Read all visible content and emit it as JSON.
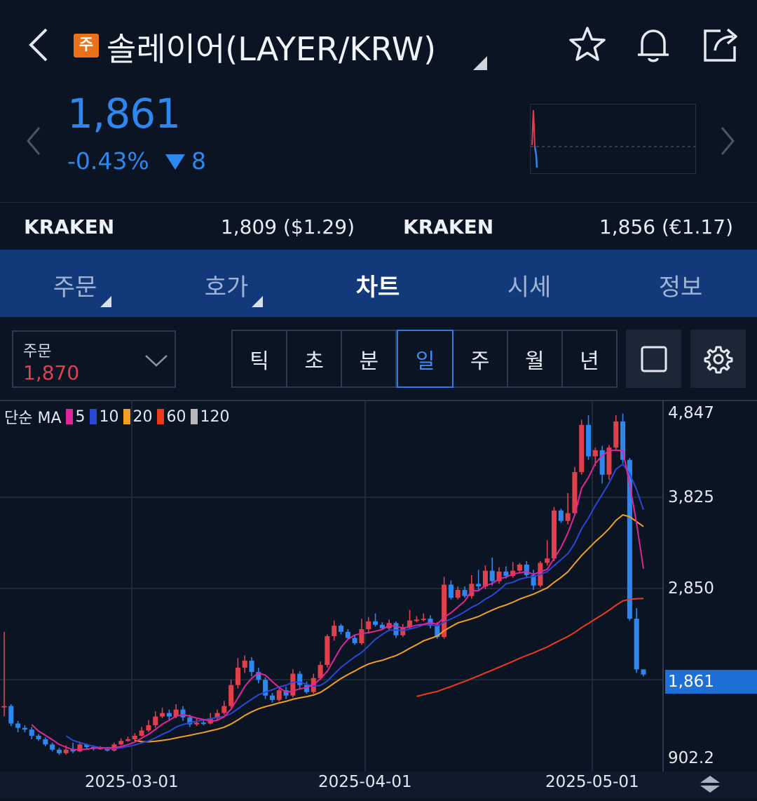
{
  "header": {
    "badge": "주",
    "title": "솔레이어(LAYER/KRW)"
  },
  "ticker": {
    "price": "1,861",
    "change_pct": "-0.43%",
    "change_abs": "8"
  },
  "exchanges": [
    {
      "name": "KRAKEN",
      "value": "1,809 ($1.29)"
    },
    {
      "name": "KRAKEN",
      "value": "1,856 (€1.17)"
    }
  ],
  "tabs": [
    {
      "label": "주문"
    },
    {
      "label": "호가"
    },
    {
      "label": "차트"
    },
    {
      "label": "시세"
    },
    {
      "label": "정보"
    }
  ],
  "order": {
    "label": "주문",
    "value": "1,870"
  },
  "periods": [
    "틱",
    "초",
    "분",
    "일",
    "주",
    "월",
    "년"
  ],
  "legend": {
    "prefix": "단순 MA",
    "items": [
      {
        "label": "5",
        "color": "#e0249a"
      },
      {
        "label": "10",
        "color": "#2b47d6"
      },
      {
        "label": "20",
        "color": "#f0a020"
      },
      {
        "label": "60",
        "color": "#ee3a1c"
      },
      {
        "label": "120",
        "color": "#b8b8b8"
      }
    ]
  },
  "colors": {
    "up": "#e0404a",
    "down": "#2e86ef",
    "accent": "#2e7ae8",
    "tab_bg": "#123a7a"
  },
  "chart_data": {
    "type": "candlestick",
    "y_ticks": [
      "4,847",
      "3,825",
      "2,850",
      "902.2"
    ],
    "last_price_label": "1,861",
    "x_ticks": [
      "2025-03-01",
      "2025-04-01",
      "2025-05-01"
    ],
    "ylim": [
      902.2,
      4847
    ],
    "candles": [
      [
        1500,
        1500,
        2350,
        1380
      ],
      [
        1500,
        1300,
        1520,
        1270
      ],
      [
        1300,
        1250,
        1330,
        1200
      ],
      [
        1250,
        1230,
        1280,
        1200
      ],
      [
        1230,
        1160,
        1260,
        1120
      ],
      [
        1160,
        1120,
        1180,
        1100
      ],
      [
        1120,
        1060,
        1140,
        1040
      ],
      [
        1060,
        1000,
        1080,
        980
      ],
      [
        1000,
        960,
        1020,
        940
      ],
      [
        960,
        1000,
        1050,
        940
      ],
      [
        1000,
        980,
        1080,
        960
      ],
      [
        980,
        1060,
        1080,
        970
      ],
      [
        1060,
        1030,
        1070,
        1010
      ],
      [
        1030,
        1010,
        1050,
        990
      ],
      [
        1010,
        1020,
        1040,
        1000
      ],
      [
        1020,
        990,
        1030,
        980
      ],
      [
        990,
        1060,
        1080,
        980
      ],
      [
        1060,
        1100,
        1130,
        1050
      ],
      [
        1100,
        1120,
        1150,
        1090
      ],
      [
        1120,
        1160,
        1190,
        1100
      ],
      [
        1160,
        1220,
        1260,
        1150
      ],
      [
        1220,
        1280,
        1340,
        1200
      ],
      [
        1280,
        1380,
        1440,
        1250
      ],
      [
        1380,
        1420,
        1480,
        1360
      ],
      [
        1420,
        1380,
        1460,
        1340
      ],
      [
        1380,
        1460,
        1520,
        1360
      ],
      [
        1460,
        1370,
        1500,
        1330
      ],
      [
        1370,
        1290,
        1400,
        1260
      ],
      [
        1290,
        1310,
        1360,
        1270
      ],
      [
        1310,
        1300,
        1340,
        1280
      ],
      [
        1300,
        1360,
        1420,
        1290
      ],
      [
        1360,
        1420,
        1460,
        1340
      ],
      [
        1420,
        1500,
        1560,
        1400
      ],
      [
        1500,
        1740,
        1800,
        1480
      ],
      [
        1740,
        1940,
        2050,
        1700
      ],
      [
        1940,
        2020,
        2080,
        1880
      ],
      [
        2020,
        1890,
        2060,
        1840
      ],
      [
        1890,
        1800,
        1940,
        1760
      ],
      [
        1800,
        1620,
        1830,
        1580
      ],
      [
        1620,
        1570,
        1650,
        1540
      ],
      [
        1570,
        1680,
        1700,
        1550
      ],
      [
        1680,
        1620,
        1720,
        1580
      ],
      [
        1620,
        1870,
        1920,
        1600
      ],
      [
        1870,
        1740,
        1900,
        1700
      ],
      [
        1740,
        1660,
        1780,
        1640
      ],
      [
        1660,
        1820,
        1870,
        1640
      ],
      [
        1820,
        1970,
        2010,
        1800
      ],
      [
        1970,
        2300,
        2320,
        1940
      ],
      [
        2300,
        2420,
        2480,
        2250
      ],
      [
        2420,
        2350,
        2440,
        2320
      ],
      [
        2350,
        2280,
        2380,
        2260
      ],
      [
        2280,
        2220,
        2320,
        2200
      ],
      [
        2220,
        2380,
        2500,
        2200
      ],
      [
        2380,
        2470,
        2520,
        2340
      ],
      [
        2470,
        2430,
        2560,
        2410
      ],
      [
        2430,
        2390,
        2460,
        2370
      ],
      [
        2390,
        2450,
        2490,
        2360
      ],
      [
        2450,
        2310,
        2470,
        2280
      ],
      [
        2310,
        2400,
        2440,
        2290
      ],
      [
        2400,
        2480,
        2600,
        2380
      ],
      [
        2480,
        2490,
        2530,
        2460
      ],
      [
        2490,
        2500,
        2560,
        2470
      ],
      [
        2500,
        2420,
        2540,
        2390
      ],
      [
        2420,
        2290,
        2460,
        2270
      ],
      [
        2290,
        2890,
        2980,
        2270
      ],
      [
        2890,
        2740,
        2940,
        2720
      ],
      [
        2740,
        2830,
        2870,
        2720
      ],
      [
        2830,
        2760,
        2870,
        2740
      ],
      [
        2760,
        2900,
        3000,
        2730
      ],
      [
        2900,
        2870,
        3060,
        2830
      ],
      [
        2870,
        3050,
        3110,
        2840
      ],
      [
        3050,
        2930,
        3200,
        2880
      ],
      [
        2930,
        3040,
        3090,
        2900
      ],
      [
        3040,
        2990,
        3100,
        2960
      ],
      [
        2990,
        3050,
        3150,
        2970
      ],
      [
        3050,
        3120,
        3140,
        3020
      ],
      [
        3120,
        3000,
        3160,
        2970
      ],
      [
        3000,
        2880,
        3060,
        2830
      ],
      [
        2880,
        3140,
        3160,
        2860
      ],
      [
        3140,
        3190,
        3400,
        3110
      ],
      [
        3190,
        3740,
        3780,
        3160
      ],
      [
        3740,
        3620,
        3760,
        3600
      ],
      [
        3620,
        3710,
        3940,
        3580
      ],
      [
        3710,
        4180,
        4240,
        3680
      ],
      [
        4180,
        4720,
        4780,
        4150
      ],
      [
        4720,
        4360,
        4830,
        4320
      ],
      [
        4360,
        4430,
        4460,
        4250
      ],
      [
        4430,
        4150,
        4480,
        4050
      ],
      [
        4150,
        4460,
        4490,
        4090
      ],
      [
        4460,
        4760,
        4830,
        4440
      ],
      [
        4760,
        4320,
        4850,
        4280
      ],
      [
        4320,
        2500,
        4340,
        2480
      ],
      [
        2500,
        1920,
        2620,
        1880
      ],
      [
        1920,
        1861,
        1890,
        1840
      ]
    ]
  }
}
